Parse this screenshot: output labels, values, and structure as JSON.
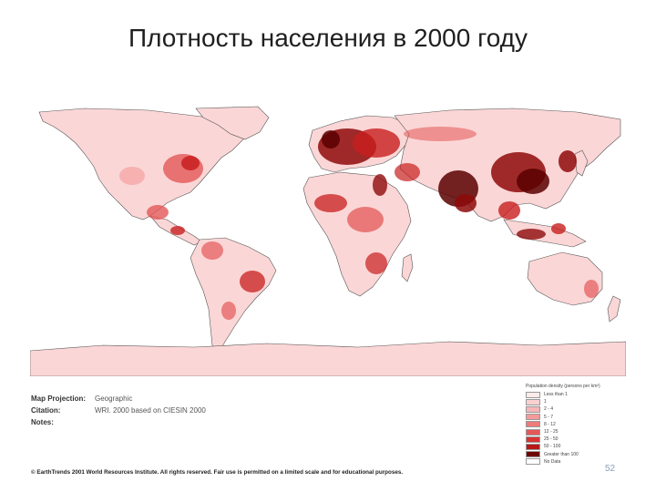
{
  "slide": {
    "title": "Плотность населения в 2000 году",
    "page_number": "52"
  },
  "map": {
    "ocean_color": "#ffffff",
    "land_base_color": "#fbd6d6",
    "border_color": "#555555",
    "hotspot_colors": [
      "#f6a8a8",
      "#e45858",
      "#c81e1e",
      "#8e0a0a",
      "#5a0000"
    ]
  },
  "metadata": {
    "projection_label": "Map Projection:",
    "projection_value": "Geographic",
    "citation_label": "Citation:",
    "citation_value": "WRI. 2000 based on CIESIN 2000",
    "notes_label": "Notes:",
    "notes_value": ""
  },
  "copyright": "© EarthTrends 2001 World Resources Institute. All rights reserved. Fair use is permitted on a limited scale and for educational purposes.",
  "legend": {
    "title": "Population density (persons per km²)",
    "items": [
      {
        "label": "Less than 1",
        "color": "#fdeaea"
      },
      {
        "label": "1",
        "color": "#fbd0d0"
      },
      {
        "label": "2 - 4",
        "color": "#f8b6b6"
      },
      {
        "label": "5 - 7",
        "color": "#f49a9a"
      },
      {
        "label": "8 - 12",
        "color": "#ee7a7a"
      },
      {
        "label": "12 - 25",
        "color": "#e65858"
      },
      {
        "label": "25 - 50",
        "color": "#d83434"
      },
      {
        "label": "50 - 100",
        "color": "#b81818"
      },
      {
        "label": "Greater than 100",
        "color": "#6e0404"
      },
      {
        "label": "No Data",
        "color": "#ffffff"
      }
    ]
  }
}
